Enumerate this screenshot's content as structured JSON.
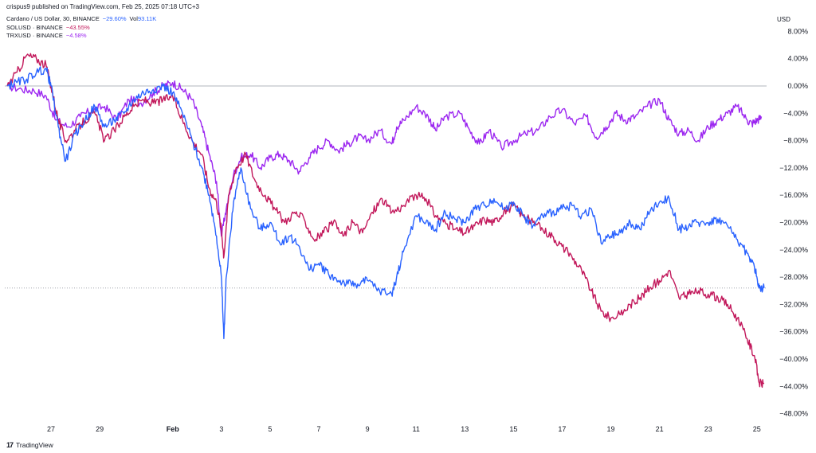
{
  "header": {
    "published": "crispus9 published on TradingView.com, Feb 25, 2025 07:18 UTC+3"
  },
  "legend": {
    "ada": {
      "label": "Cardano / US Dollar, 30, BINANCE",
      "change": "−29.60%",
      "vol_label": "Vol",
      "vol_value": "93.11K"
    },
    "sol": {
      "label": "SOLUSD · BINANCE",
      "change": "−43.55%"
    },
    "trx": {
      "label": "TRXUSD · BINANCE",
      "change": "−4.58%"
    }
  },
  "footer": {
    "brand": "TradingView",
    "logo_text": "17"
  },
  "colors": {
    "ada": "#2962ff",
    "sol": "#c2185b",
    "trx": "#9c27f0",
    "axis_text": "#131722",
    "zero_line": "#b2b5be"
  },
  "chart_data": {
    "type": "line",
    "y_unit": "USD",
    "y_ticks": [
      "8.00%",
      "4.00%",
      "0.00%",
      "−4.00%",
      "−8.00%",
      "−12.00%",
      "−16.00%",
      "−20.00%",
      "−24.00%",
      "−28.00%",
      "−32.00%",
      "−36.00%",
      "−40.00%",
      "−44.00%",
      "−48.00%"
    ],
    "y_tick_values": [
      8,
      4,
      0,
      -4,
      -8,
      -12,
      -16,
      -20,
      -24,
      -28,
      -32,
      -36,
      -40,
      -44,
      -48
    ],
    "ylim": [
      -49.5,
      9.5
    ],
    "x_ticks": [
      "27",
      "29",
      "Feb",
      "3",
      "5",
      "7",
      "9",
      "11",
      "13",
      "15",
      "17",
      "19",
      "21",
      "23",
      "25"
    ],
    "x_tick_values": [
      27,
      29,
      32,
      34,
      36,
      38,
      40,
      42,
      44,
      46,
      48,
      50,
      52,
      54,
      56
    ],
    "xlim": [
      25.1,
      56.4
    ],
    "last_value_line": -29.6,
    "series": [
      {
        "key": "trx",
        "name": "TRXUSD · BINANCE",
        "x": [
          25.2,
          25.8,
          26.3,
          26.8,
          27.2,
          27.7,
          28.2,
          28.7,
          29.2,
          29.7,
          30.2,
          30.7,
          31.2,
          31.6,
          32.0,
          32.4,
          32.8,
          33.2,
          33.5,
          33.8,
          34.0,
          34.2,
          34.5,
          34.8,
          35.2,
          35.6,
          36.0,
          36.4,
          36.8,
          37.2,
          37.6,
          38.0,
          38.4,
          38.8,
          39.2,
          39.6,
          40.0,
          40.5,
          41.0,
          41.2,
          41.5,
          42.0,
          42.5,
          42.8,
          43.2,
          43.8,
          44.2,
          44.6,
          45.0,
          45.5,
          46.0,
          46.5,
          47.0,
          47.5,
          48.0,
          48.5,
          49.0,
          49.4,
          49.8,
          50.2,
          50.6,
          51.0,
          51.5,
          52.0,
          52.4,
          52.8,
          53.2,
          53.6,
          54.0,
          54.4,
          54.8,
          55.2,
          55.6,
          55.8,
          56.0,
          56.2
        ],
        "y": [
          0.0,
          -0.5,
          -0.7,
          -1.5,
          -5.0,
          -6.0,
          -4.5,
          -3.5,
          -3.0,
          -5.0,
          -2.0,
          -2.5,
          -1.0,
          0.0,
          0.5,
          -0.5,
          -2.0,
          -6.0,
          -10.0,
          -14.0,
          -22.0,
          -18.0,
          -13.0,
          -10.5,
          -10.0,
          -12.0,
          -10.5,
          -10.0,
          -11.0,
          -12.5,
          -10.5,
          -9.0,
          -8.0,
          -9.5,
          -8.5,
          -7.5,
          -8.0,
          -6.5,
          -8.5,
          -6.0,
          -5.0,
          -3.0,
          -4.5,
          -6.5,
          -4.5,
          -4.0,
          -6.5,
          -8.5,
          -6.5,
          -9.0,
          -8.0,
          -7.0,
          -6.5,
          -4.5,
          -3.5,
          -5.5,
          -4.5,
          -7.5,
          -6.0,
          -4.0,
          -5.0,
          -4.5,
          -3.0,
          -2.0,
          -5.0,
          -7.0,
          -6.5,
          -8.0,
          -6.0,
          -5.0,
          -4.0,
          -3.0,
          -5.0,
          -5.5,
          -5.0,
          -4.6
        ]
      },
      {
        "key": "sol",
        "name": "SOLUSD · BINANCE",
        "x": [
          25.2,
          25.6,
          26.0,
          26.4,
          26.8,
          27.0,
          27.3,
          27.6,
          28.0,
          28.4,
          28.8,
          29.2,
          29.6,
          30.0,
          30.4,
          30.8,
          31.2,
          31.6,
          32.0,
          32.4,
          32.8,
          33.2,
          33.5,
          33.8,
          34.0,
          34.1,
          34.3,
          34.6,
          35.0,
          35.4,
          35.8,
          36.2,
          36.6,
          37.0,
          37.4,
          37.8,
          38.2,
          38.6,
          39.0,
          39.4,
          39.8,
          40.2,
          40.6,
          41.0,
          41.5,
          42.0,
          42.4,
          42.8,
          43.2,
          43.6,
          44.0,
          44.4,
          44.8,
          45.2,
          45.6,
          46.0,
          46.4,
          46.8,
          47.2,
          47.6,
          48.0,
          48.4,
          48.8,
          49.2,
          49.6,
          50.0,
          50.4,
          50.8,
          51.2,
          51.6,
          52.0,
          52.4,
          52.8,
          53.2,
          53.6,
          54.0,
          54.4,
          54.8,
          55.2,
          55.6,
          55.9,
          56.1,
          56.3
        ],
        "y": [
          0.0,
          2.0,
          4.5,
          4.0,
          3.0,
          0.0,
          -5.0,
          -8.0,
          -6.5,
          -5.0,
          -4.0,
          -8.0,
          -6.5,
          -4.5,
          -3.0,
          -2.0,
          -2.5,
          -2.0,
          -1.5,
          -5.0,
          -8.0,
          -10.0,
          -15.0,
          -17.0,
          -21.0,
          -25.0,
          -16.0,
          -12.0,
          -10.0,
          -14.0,
          -16.0,
          -18.0,
          -20.0,
          -18.5,
          -19.5,
          -22.5,
          -21.5,
          -20.0,
          -22.0,
          -20.0,
          -21.5,
          -18.5,
          -16.5,
          -18.5,
          -17.5,
          -16.0,
          -16.5,
          -19.0,
          -20.0,
          -21.0,
          -21.5,
          -20.5,
          -19.5,
          -20.0,
          -18.5,
          -17.5,
          -19.0,
          -20.0,
          -21.0,
          -22.0,
          -23.5,
          -25.0,
          -27.0,
          -30.0,
          -33.0,
          -34.0,
          -33.5,
          -32.0,
          -31.0,
          -29.5,
          -28.5,
          -27.0,
          -31.0,
          -30.5,
          -30.0,
          -30.5,
          -31.0,
          -32.0,
          -34.0,
          -37.0,
          -39.5,
          -43.5,
          -43.6
        ]
      },
      {
        "key": "ada",
        "name": "Cardano / US Dollar, 30, BINANCE",
        "x": [
          25.2,
          25.6,
          26.0,
          26.4,
          26.8,
          27.0,
          27.3,
          27.6,
          28.0,
          28.4,
          28.8,
          29.2,
          29.6,
          30.0,
          30.4,
          30.8,
          31.2,
          31.6,
          32.0,
          32.4,
          32.8,
          33.2,
          33.5,
          33.8,
          34.0,
          34.1,
          34.2,
          34.5,
          34.8,
          35.2,
          35.6,
          36.0,
          36.4,
          36.8,
          37.2,
          37.6,
          38.0,
          38.4,
          38.8,
          39.2,
          39.6,
          40.0,
          40.5,
          41.0,
          41.2,
          41.5,
          42.0,
          42.4,
          42.8,
          43.2,
          43.6,
          44.0,
          44.4,
          44.8,
          45.2,
          45.6,
          46.0,
          46.4,
          46.8,
          47.2,
          47.6,
          48.0,
          48.4,
          48.8,
          49.2,
          49.6,
          50.0,
          50.4,
          50.8,
          51.2,
          51.6,
          52.0,
          52.4,
          52.8,
          53.2,
          53.6,
          54.0,
          54.4,
          54.8,
          55.2,
          55.6,
          55.9,
          56.1,
          56.3
        ],
        "y": [
          0.0,
          0.5,
          1.0,
          2.0,
          2.5,
          0.0,
          -6.0,
          -11.0,
          -7.0,
          -5.0,
          -3.0,
          -6.0,
          -5.0,
          -4.0,
          -2.0,
          -1.0,
          -0.5,
          0.0,
          -1.0,
          -4.0,
          -8.0,
          -12.0,
          -16.0,
          -22.0,
          -28.0,
          -37.0,
          -28.0,
          -17.0,
          -12.0,
          -18.0,
          -21.0,
          -20.0,
          -23.0,
          -22.0,
          -23.5,
          -27.0,
          -26.0,
          -27.5,
          -28.5,
          -29.0,
          -29.0,
          -28.5,
          -30.0,
          -30.5,
          -28.0,
          -24.0,
          -19.0,
          -20.0,
          -21.0,
          -18.5,
          -19.5,
          -20.0,
          -18.0,
          -17.5,
          -16.5,
          -18.0,
          -17.0,
          -19.0,
          -20.5,
          -19.0,
          -18.5,
          -18.0,
          -17.5,
          -19.0,
          -18.0,
          -23.0,
          -22.0,
          -21.5,
          -20.0,
          -21.0,
          -18.5,
          -17.0,
          -16.5,
          -21.0,
          -20.5,
          -20.0,
          -20.0,
          -19.5,
          -20.5,
          -22.5,
          -24.5,
          -26.5,
          -29.6,
          -29.6
        ]
      }
    ]
  }
}
